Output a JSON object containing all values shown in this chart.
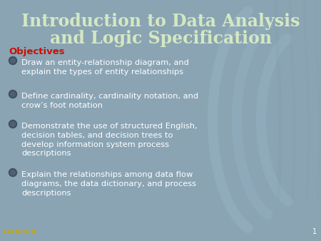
{
  "title_line1": "Introduction to Data Analysis",
  "title_line2": "and Logic Specification",
  "title_color": "#d4e8c2",
  "objectives_label": "Objectives",
  "objectives_color": "#cc1100",
  "bullet_points": [
    "Draw an entity-relationship diagram, and\nexplain the types of entity relationships",
    "Define cardinality, cardinality notation, and\ncrow’s foot notation",
    "Demonstrate the use of structured English,\ndecision tables, and decision trees to\ndevelop information system process\ndescriptions",
    "Explain the relationships among data flow\ndiagrams, the data dictionary, and process\ndescriptions"
  ],
  "bullet_color": "#ffffff",
  "bg_color": "#8aa4b4",
  "arc_color": "#9dbdcc",
  "lecture_label": "Lecture 9",
  "lecture_color": "#c8a800",
  "slide_number": "1",
  "slide_number_color": "#ffffff",
  "title_fontsize": 17,
  "objectives_fontsize": 9.5,
  "bullet_fontsize": 8.2,
  "lecture_fontsize": 6
}
